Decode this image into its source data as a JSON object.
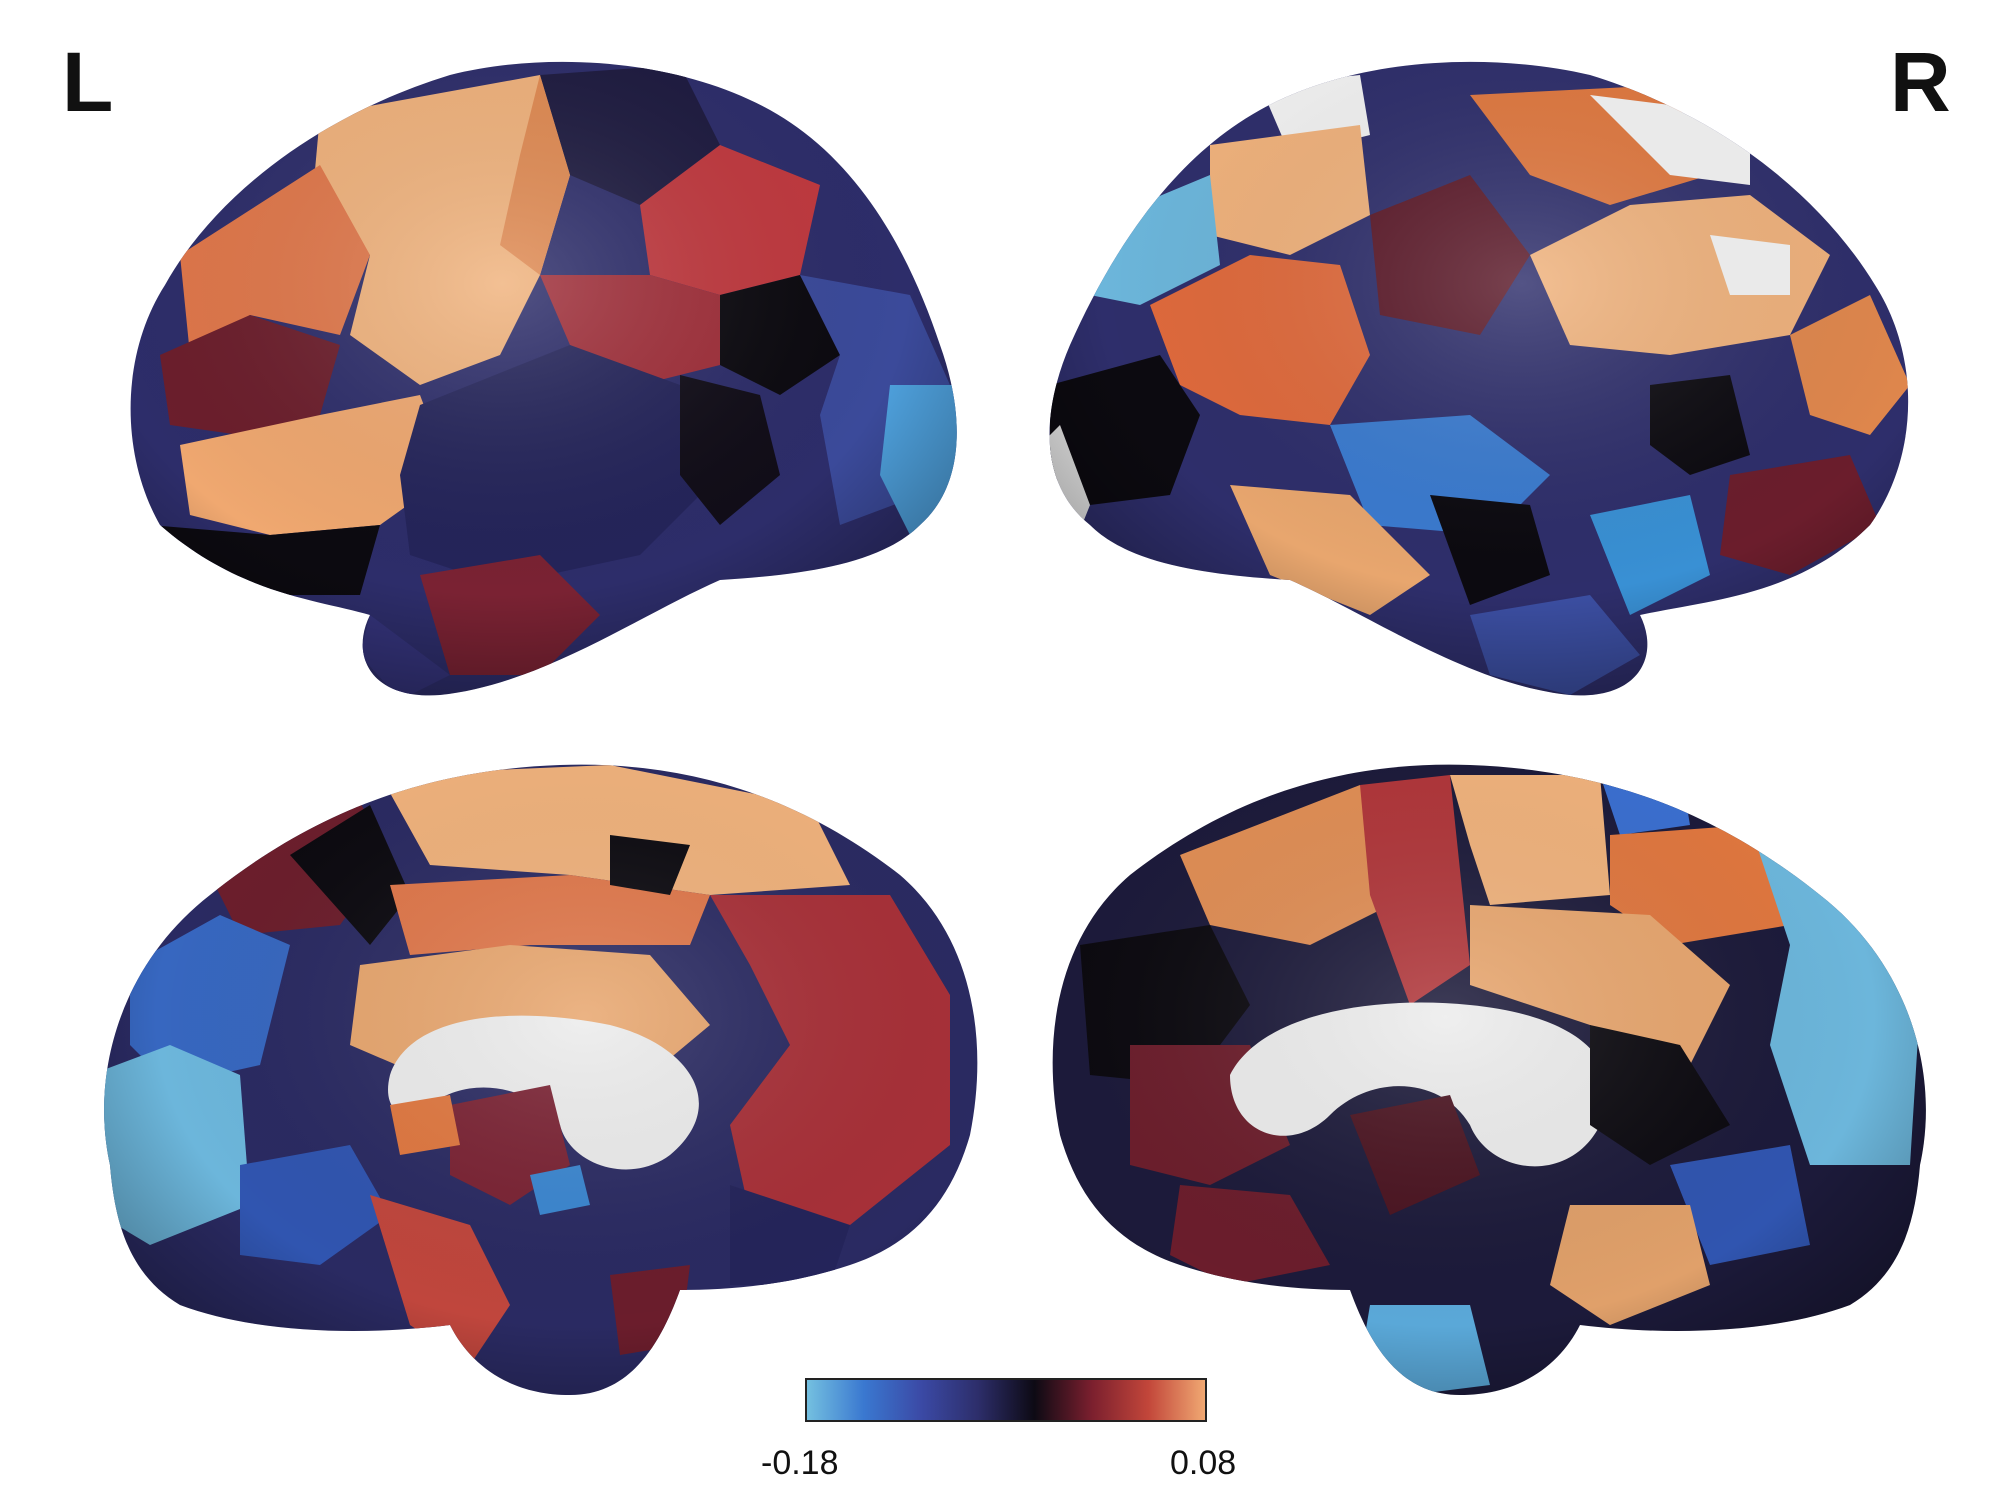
{
  "labels": {
    "left": "L",
    "right": "R"
  },
  "views": [
    {
      "hemisphere": "left",
      "view": "lateral"
    },
    {
      "hemisphere": "right",
      "view": "lateral"
    },
    {
      "hemisphere": "left",
      "view": "medial"
    },
    {
      "hemisphere": "right",
      "view": "medial"
    }
  ],
  "colorbar": {
    "min_label": "-0.18",
    "max_label": "0.08",
    "min": -0.18,
    "max": 0.08,
    "colors": [
      "#74c0e0",
      "#3a78d0",
      "#3b4aa6",
      "#2d2e6b",
      "#0d0a14",
      "#7a1f2e",
      "#c2463a",
      "#f0a872"
    ]
  },
  "palette": {
    "sky": "#6cb6db",
    "blue": "#3f6fc4",
    "indigo": "#3b3f8f",
    "navy": "#23224d",
    "black": "#0c0a10",
    "maroon": "#6c1e2c",
    "crimson": "#b53a40",
    "orange": "#e0774a",
    "peach": "#f0b27c",
    "white": "#f1f1f1"
  }
}
